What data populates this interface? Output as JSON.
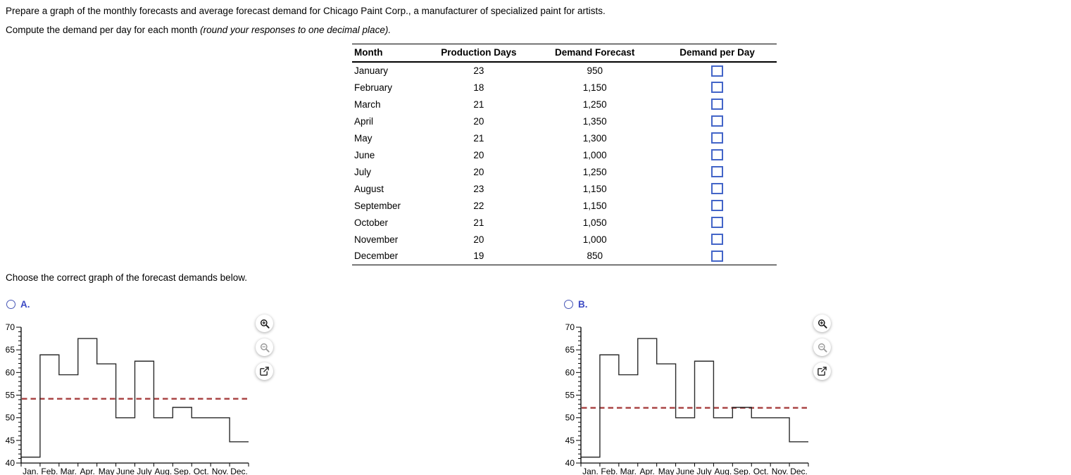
{
  "page": {
    "title_line": "Prepare a graph of the monthly forecasts and average forecast demand for Chicago Paint Corp., a manufacturer of specialized paint for artists.",
    "compute_line_normal": "Compute the demand per day for each month ",
    "compute_line_italic": "(round your responses to one decimal place).",
    "choose_line": "Choose the correct graph of the forecast demands below."
  },
  "table": {
    "headers": [
      "Month",
      "Production Days",
      "Demand Forecast",
      "Demand per Day"
    ],
    "rows": [
      {
        "month": "January",
        "days": "23",
        "forecast": "950",
        "input_value": ""
      },
      {
        "month": "February",
        "days": "18",
        "forecast": "1,150",
        "input_value": ""
      },
      {
        "month": "March",
        "days": "21",
        "forecast": "1,250",
        "input_value": ""
      },
      {
        "month": "April",
        "days": "20",
        "forecast": "1,350",
        "input_value": ""
      },
      {
        "month": "May",
        "days": "21",
        "forecast": "1,300",
        "input_value": ""
      },
      {
        "month": "June",
        "days": "20",
        "forecast": "1,000",
        "input_value": ""
      },
      {
        "month": "July",
        "days": "20",
        "forecast": "1,250",
        "input_value": ""
      },
      {
        "month": "August",
        "days": "23",
        "forecast": "1,150",
        "input_value": ""
      },
      {
        "month": "September",
        "days": "22",
        "forecast": "1,150",
        "input_value": ""
      },
      {
        "month": "October",
        "days": "21",
        "forecast": "1,050",
        "input_value": ""
      },
      {
        "month": "November",
        "days": "20",
        "forecast": "1,000",
        "input_value": ""
      },
      {
        "month": "December",
        "days": "19",
        "forecast": "850",
        "input_value": ""
      }
    ]
  },
  "options": [
    {
      "label": "A.",
      "selected": false
    },
    {
      "label": "B.",
      "selected": false
    }
  ],
  "chart_data": [
    {
      "type": "line",
      "subtype": "step",
      "option": "A",
      "categories": [
        "Jan.",
        "Feb.",
        "Mar.",
        "Apr.",
        "May",
        "June",
        "July",
        "Aug.",
        "Sep.",
        "Oct.",
        "Nov.",
        "Dec."
      ],
      "values": [
        41.3,
        63.9,
        59.5,
        67.5,
        61.9,
        50.0,
        62.5,
        50.0,
        52.3,
        50.0,
        50.0,
        44.7
      ],
      "average_line": 54.2,
      "ylim": [
        40,
        70
      ],
      "ytick_step": 5,
      "yminor_step": 1,
      "xlabel": "",
      "ylabel": "",
      "grid": false,
      "line_color": "#2b2b2b",
      "average_color": "#a63d3d",
      "average_style": "dashed"
    },
    {
      "type": "line",
      "subtype": "step",
      "option": "B",
      "categories": [
        "Jan.",
        "Feb.",
        "Mar.",
        "Apr.",
        "May",
        "June",
        "July",
        "Aug.",
        "Sep.",
        "Oct.",
        "Nov.",
        "Dec."
      ],
      "values": [
        41.3,
        63.9,
        59.5,
        67.5,
        61.9,
        50.0,
        62.5,
        50.0,
        52.3,
        50.0,
        50.0,
        44.7
      ],
      "average_line": 52.2,
      "ylim": [
        40,
        70
      ],
      "ytick_step": 5,
      "yminor_step": 1,
      "xlabel": "",
      "ylabel": "",
      "grid": false,
      "line_color": "#2b2b2b",
      "average_color": "#a63d3d",
      "average_style": "dashed"
    }
  ],
  "graph_tools": [
    {
      "name": "zoom-in",
      "glyph": "magnifier-plus"
    },
    {
      "name": "zoom-out",
      "glyph": "magnifier-minus"
    },
    {
      "name": "open-in-new-window",
      "glyph": "external-link"
    }
  ],
  "colors": {
    "input_border": "#4365c8",
    "option_label": "#3c49c4",
    "step_line": "#2b2b2b",
    "average_line": "#a63d3d"
  }
}
